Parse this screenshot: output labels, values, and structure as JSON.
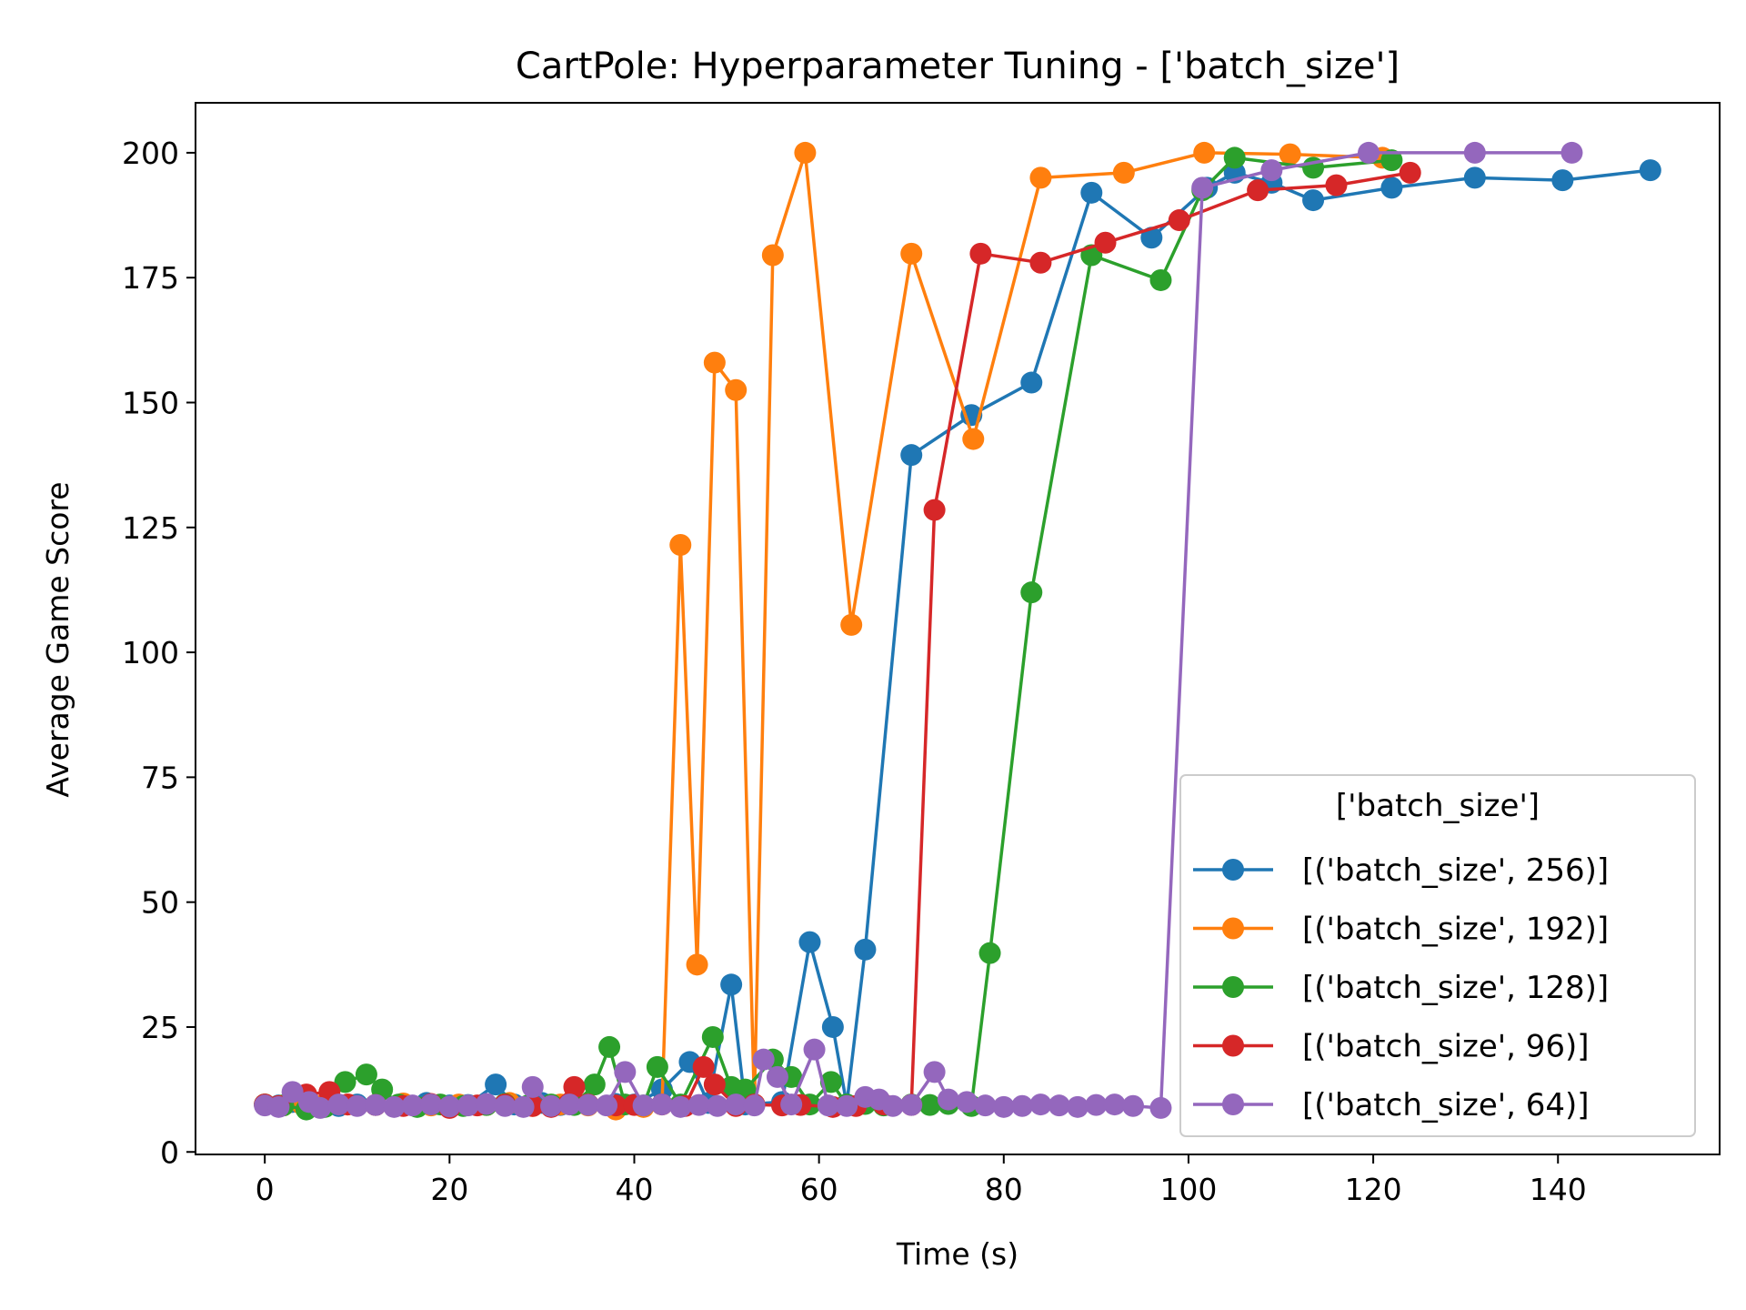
{
  "chart_data": {
    "type": "line",
    "title": "CartPole: Hyperparameter Tuning - ['batch_size']",
    "xlabel": "Time (s)",
    "ylabel": "Average Game Score",
    "xlim": [
      -7.5,
      157.5
    ],
    "ylim": [
      -0.5,
      210
    ],
    "xticks": [
      0,
      20,
      40,
      60,
      80,
      100,
      120,
      140
    ],
    "yticks": [
      0,
      25,
      50,
      75,
      100,
      125,
      150,
      175,
      200
    ],
    "grid": false,
    "legend": {
      "title": "['batch_size']",
      "placement": "lower right"
    },
    "series": [
      {
        "name": "[('batch_size', 256)]",
        "color": "#1f77b4",
        "points": [
          [
            0,
            9.5
          ],
          [
            1.5,
            9.3
          ],
          [
            3,
            10
          ],
          [
            4.5,
            9.5
          ],
          [
            6,
            9
          ],
          [
            8,
            9.2
          ],
          [
            10,
            9.5
          ],
          [
            12,
            9.4
          ],
          [
            15,
            9.6
          ],
          [
            17.5,
            9.8
          ],
          [
            20,
            9.3
          ],
          [
            22,
            9.4
          ],
          [
            25,
            13.5
          ],
          [
            27,
            9.5
          ],
          [
            30,
            9.8
          ],
          [
            32,
            9.4
          ],
          [
            35,
            9.5
          ],
          [
            38,
            9.6
          ],
          [
            40,
            9.5
          ],
          [
            43,
            12.5
          ],
          [
            46,
            18
          ],
          [
            48,
            9.8
          ],
          [
            50.5,
            33.5
          ],
          [
            52,
            9.5
          ],
          [
            56,
            10
          ],
          [
            59,
            42
          ],
          [
            61.5,
            25
          ],
          [
            63,
            9.5
          ],
          [
            65,
            40.5
          ],
          [
            70,
            139.5
          ],
          [
            76.5,
            147.5
          ],
          [
            83,
            154
          ],
          [
            89.5,
            192
          ],
          [
            96,
            183
          ],
          [
            102,
            193
          ],
          [
            105,
            196
          ],
          [
            109,
            194
          ],
          [
            113.5,
            190.5
          ],
          [
            122,
            193
          ],
          [
            131,
            195
          ],
          [
            140.5,
            194.5
          ],
          [
            150,
            196.5
          ]
        ]
      },
      {
        "name": "[('batch_size', 192)]",
        "color": "#ff7f0e",
        "points": [
          [
            0,
            9.5
          ],
          [
            2,
            9.3
          ],
          [
            4,
            9.6
          ],
          [
            6,
            9.2
          ],
          [
            9,
            9.5
          ],
          [
            12,
            9.4
          ],
          [
            15,
            9.7
          ],
          [
            18,
            9.3
          ],
          [
            21,
            9.5
          ],
          [
            24,
            9.4
          ],
          [
            26.5,
            9.8
          ],
          [
            29,
            9.2
          ],
          [
            32,
            9.5
          ],
          [
            35,
            9.3
          ],
          [
            38,
            8.5
          ],
          [
            41,
            9
          ],
          [
            43,
            9.5
          ],
          [
            45,
            121.5
          ],
          [
            46.8,
            37.5
          ],
          [
            48.7,
            158
          ],
          [
            51,
            152.5
          ],
          [
            53,
            9.5
          ],
          [
            55,
            179.5
          ],
          [
            58.5,
            200
          ],
          [
            63.5,
            105.5
          ],
          [
            70,
            179.8
          ],
          [
            76.7,
            142.7
          ],
          [
            84,
            195
          ],
          [
            93,
            196
          ],
          [
            101.7,
            200
          ],
          [
            111,
            199.7
          ],
          [
            121,
            199
          ]
        ]
      },
      {
        "name": "[('batch_size', 128)]",
        "color": "#2ca02c",
        "points": [
          [
            0,
            9.5
          ],
          [
            2,
            9.3
          ],
          [
            4.5,
            8.5
          ],
          [
            6.5,
            9
          ],
          [
            8.7,
            14
          ],
          [
            11,
            15.5
          ],
          [
            12.7,
            12.5
          ],
          [
            14.5,
            9.5
          ],
          [
            16.5,
            9
          ],
          [
            19,
            9.5
          ],
          [
            21.5,
            9.2
          ],
          [
            24,
            9.4
          ],
          [
            26,
            9.6
          ],
          [
            28.5,
            9.3
          ],
          [
            31,
            9.5
          ],
          [
            33.5,
            9.4
          ],
          [
            35.7,
            13.5
          ],
          [
            37.3,
            21
          ],
          [
            39,
            9.5
          ],
          [
            41,
            9.3
          ],
          [
            42.5,
            17
          ],
          [
            45,
            9.5
          ],
          [
            48.5,
            23
          ],
          [
            50.5,
            13
          ],
          [
            52,
            12.5
          ],
          [
            55,
            18.5
          ],
          [
            57,
            15
          ],
          [
            59,
            9.5
          ],
          [
            61.3,
            14
          ],
          [
            63,
            9.5
          ],
          [
            65,
            9.6
          ],
          [
            67,
            9.3
          ],
          [
            70,
            9.5
          ],
          [
            72,
            9.4
          ],
          [
            74,
            9.6
          ],
          [
            76.5,
            9.2
          ],
          [
            78.5,
            39.8
          ],
          [
            83,
            112
          ],
          [
            89.5,
            179.5
          ],
          [
            97,
            174.5
          ],
          [
            101.5,
            192.5
          ],
          [
            105,
            199
          ],
          [
            113.5,
            197
          ],
          [
            122,
            198.5
          ]
        ]
      },
      {
        "name": "[('batch_size', 96)]",
        "color": "#d62728",
        "points": [
          [
            0,
            9.5
          ],
          [
            1.5,
            9.2
          ],
          [
            4.5,
            11.5
          ],
          [
            7,
            12
          ],
          [
            9,
            9.5
          ],
          [
            12,
            9.4
          ],
          [
            15,
            9.2
          ],
          [
            18,
            9.6
          ],
          [
            20,
            8.8
          ],
          [
            23,
            9.3
          ],
          [
            26,
            9.5
          ],
          [
            29,
            9.2
          ],
          [
            31,
            9
          ],
          [
            33.5,
            13
          ],
          [
            35,
            9.5
          ],
          [
            38,
            9.3
          ],
          [
            40,
            9.4
          ],
          [
            43,
            9.5
          ],
          [
            45.5,
            9.2
          ],
          [
            47.5,
            17
          ],
          [
            48.7,
            13.5
          ],
          [
            51,
            9.2
          ],
          [
            53,
            9.5
          ],
          [
            56,
            9.3
          ],
          [
            58,
            9.4
          ],
          [
            61.5,
            9
          ],
          [
            64,
            9.2
          ],
          [
            67,
            9.5
          ],
          [
            70,
            9.4
          ],
          [
            72.5,
            128.5
          ],
          [
            77.5,
            179.8
          ],
          [
            84,
            178
          ],
          [
            91,
            182
          ],
          [
            99,
            186.5
          ],
          [
            107.5,
            192.5
          ],
          [
            116,
            193.5
          ],
          [
            124,
            196
          ]
        ]
      },
      {
        "name": "[('batch_size', 64)]",
        "color": "#9467bd",
        "points": [
          [
            0,
            9.3
          ],
          [
            1.5,
            9
          ],
          [
            3,
            12
          ],
          [
            4.8,
            10
          ],
          [
            6,
            8.8
          ],
          [
            8,
            9.5
          ],
          [
            10,
            9.2
          ],
          [
            12,
            9.4
          ],
          [
            14,
            9
          ],
          [
            16,
            9.3
          ],
          [
            18,
            9.5
          ],
          [
            20,
            9.1
          ],
          [
            22,
            9.3
          ],
          [
            24,
            9.6
          ],
          [
            26,
            9.2
          ],
          [
            28,
            9
          ],
          [
            29,
            13
          ],
          [
            31,
            9.2
          ],
          [
            33,
            9.5
          ],
          [
            35,
            9.4
          ],
          [
            37,
            9.3
          ],
          [
            39,
            16
          ],
          [
            41,
            9.3
          ],
          [
            43,
            9.5
          ],
          [
            45,
            9
          ],
          [
            47,
            9.4
          ],
          [
            49,
            9.2
          ],
          [
            51,
            9.5
          ],
          [
            53,
            9.3
          ],
          [
            54,
            18.5
          ],
          [
            55.5,
            15
          ],
          [
            57,
            9.5
          ],
          [
            59.5,
            20.5
          ],
          [
            61,
            9.3
          ],
          [
            63,
            9.2
          ],
          [
            65,
            11
          ],
          [
            66.5,
            10.5
          ],
          [
            68,
            9.2
          ],
          [
            70,
            9.4
          ],
          [
            72.5,
            16
          ],
          [
            74,
            10.5
          ],
          [
            76,
            10
          ],
          [
            78,
            9.3
          ],
          [
            80,
            9
          ],
          [
            82,
            9.2
          ],
          [
            84,
            9.5
          ],
          [
            86,
            9.3
          ],
          [
            88,
            9
          ],
          [
            90,
            9.4
          ],
          [
            92,
            9.5
          ],
          [
            94,
            9.2
          ],
          [
            97,
            8.8
          ],
          [
            101.5,
            193
          ],
          [
            109,
            196.5
          ],
          [
            119.5,
            200
          ],
          [
            131,
            200
          ],
          [
            141.5,
            200
          ]
        ]
      }
    ]
  }
}
